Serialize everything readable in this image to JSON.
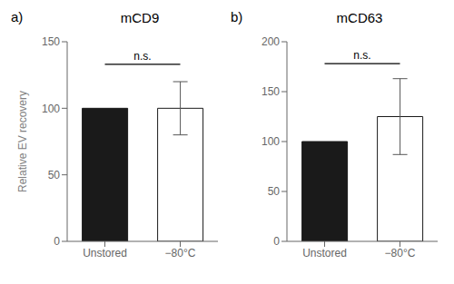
{
  "chart_data": [
    {
      "type": "bar",
      "panel_label": "a)",
      "title": "mCD9",
      "ylabel": "Relative EV recovery",
      "categories": [
        "Unstored",
        "−80°C"
      ],
      "values": [
        100,
        100
      ],
      "errors": [
        0,
        20
      ],
      "colors": [
        "#1a1a1a",
        "#ffffff"
      ],
      "ylim": [
        0,
        150
      ],
      "yticks": [
        0,
        50,
        100,
        150
      ],
      "grid": false,
      "annotations": [
        {
          "text": "n.s.",
          "x1": "Unstored",
          "x2": "−80°C",
          "y": 133
        }
      ]
    },
    {
      "type": "bar",
      "panel_label": "b)",
      "title": "mCD63",
      "categories": [
        "Unstored",
        "−80°C"
      ],
      "values": [
        100,
        125
      ],
      "errors": [
        0,
        38
      ],
      "colors": [
        "#1a1a1a",
        "#ffffff"
      ],
      "ylim": [
        0,
        200
      ],
      "yticks": [
        0,
        50,
        100,
        150,
        200
      ],
      "grid": false,
      "annotations": [
        {
          "text": "n.s.",
          "x1": "Unstored",
          "x2": "−80°C",
          "y": 178
        }
      ]
    }
  ]
}
